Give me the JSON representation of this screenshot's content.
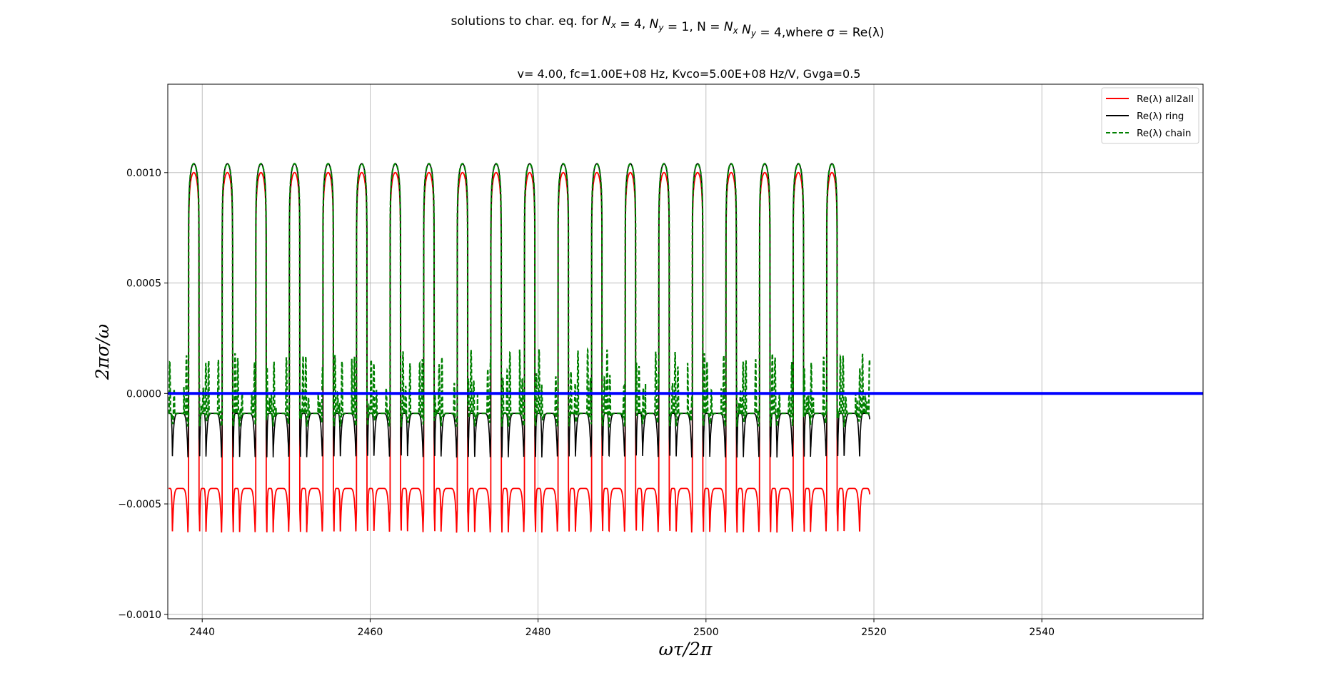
{
  "chart_data": {
    "type": "line",
    "title": "solutions to char. eq. for N_x = 4, N_y = 1, N = N_x N_y = 4,where σ = Re(λ)",
    "subtitle": "v= 4.00, fc=1.00E+08 Hz, Kvco=5.00E+08 Hz/V, Gvga=0.5",
    "xlabel": "ωτ/2π",
    "ylabel": "2πσ/ω",
    "xlim": [
      2435.9,
      2559.2
    ],
    "ylim": [
      -0.00102,
      0.0014
    ],
    "x_ticks": [
      2440,
      2460,
      2480,
      2500,
      2520,
      2540
    ],
    "x_tick_labels": [
      "2440",
      "2460",
      "2480",
      "2500",
      "2520",
      "2540"
    ],
    "y_ticks": [
      0.001,
      0.0005,
      0.0,
      -0.0005,
      -0.001
    ],
    "y_tick_labels": [
      "0.0010",
      "0.0005",
      "0.0000",
      "−0.0005",
      "−0.0010"
    ],
    "grid": true,
    "legend_position": "top-right",
    "x_range_data": [
      2436,
      2519.5
    ],
    "pattern_period": 4.0,
    "lobe_centers": [
      2439,
      2443,
      2447,
      2451,
      2455,
      2459,
      2463,
      2467,
      2471,
      2475,
      2479,
      2483,
      2487,
      2491,
      2495,
      2499,
      2503,
      2507,
      2511,
      2515
    ],
    "zero_line": {
      "y": 0.0,
      "color": "#0000ff"
    },
    "series": [
      {
        "name": "Re(λ) all2all",
        "legend_label": "Re(λ) all2all",
        "color": "#ff0000",
        "style": "solid",
        "lobe_peak": 0.001,
        "baseline": -0.00043,
        "trough": -0.00063
      },
      {
        "name": "Re(λ) ring",
        "legend_label": "Re(λ) ring",
        "color": "#000000",
        "style": "solid",
        "lobe_peak": 0.00104,
        "baseline": -9e-05,
        "trough": -0.00029
      },
      {
        "name": "Re(λ) chain",
        "legend_label": "Re(λ) chain",
        "color": "#008000",
        "style": "dashed",
        "lobe_peak": 0.00104,
        "baseline": -9e-05,
        "trough": -0.00015,
        "spike_max": 0.0002
      }
    ]
  }
}
